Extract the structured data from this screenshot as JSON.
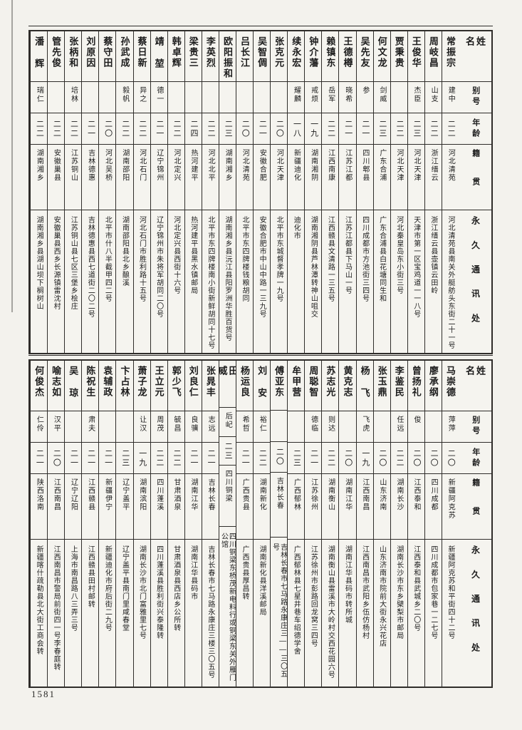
{
  "page": {
    "number": "1581"
  },
  "row_headers": {
    "name": "姓名",
    "alias": "别号",
    "age": "年龄",
    "native_place": "籍贯",
    "address": "永久通讯处"
  },
  "tables": [
    {
      "id": "top",
      "entries": [
        {
          "name": "常振宗",
          "alias": "建中",
          "age": "二二",
          "native_place": "河北清苑",
          "address": "河北清苑县南关外艇舫头东街二十一号"
        },
        {
          "name": "周岐昌",
          "alias": "山支",
          "age": "二二",
          "native_place": "浙江缙云",
          "address": "浙江缙云县壶镇云田岭"
        },
        {
          "name": "王俊华",
          "alias": "杰臣",
          "age": "二三",
          "native_place": "河北天津",
          "address": "天津市第一区宝鸡道一一八号"
        },
        {
          "name": "贾秉贵",
          "alias": "",
          "age": "二二",
          "native_place": "河北天津",
          "address": "河北秦皇岛东小街三号"
        },
        {
          "name": "何文龙",
          "alias": "剑威",
          "age": "二三",
          "native_place": "广东合浦",
          "address": "广东合浦县白花塘同生和"
        },
        {
          "name": "吴先友",
          "alias": "参",
          "age": "二一",
          "native_place": "四川郫县",
          "address": "四川成都市方池街三四号"
        },
        {
          "name": "王德樽",
          "alias": "晓希",
          "age": "二一",
          "native_place": "江苏江都",
          "address": "江苏江都县下马山一号"
        },
        {
          "name": "赖镇东",
          "alias": "岳军",
          "age": "二二",
          "native_place": "江西南康",
          "address": "江西赣县文清路一三五号"
        },
        {
          "name": "钟介藩",
          "alias": "戒烦",
          "age": "一九",
          "native_place": "湖南湘阴",
          "address": "湖南湘阴县芦林潭转神山咀交"
        },
        {
          "name": "续永宏",
          "alias": "耀麟",
          "age": "一八",
          "native_place": "新疆迪化",
          "address": "迪化市"
        },
        {
          "name": "张克元",
          "alias": "",
          "age": "二〇",
          "native_place": "河北天津",
          "address": "北平市东城督孝牌一九号"
        },
        {
          "name": "吴智倜",
          "alias": "",
          "age": "二一",
          "native_place": "安徽合肥",
          "address": "安徽合肥市中山中路一三九号"
        },
        {
          "name": "吕长江",
          "alias": "",
          "age": "二〇",
          "native_place": "河北清苑",
          "address": "北平市东四牌楼钱粮胡同"
        },
        {
          "name": "欧阳振和",
          "alias": "",
          "age": "二三",
          "native_place": "湖南湘乡",
          "address": "湖南湘乡县沅江县阳罗洲华胜百货号"
        },
        {
          "name": "李英烈",
          "alias": "",
          "age": "二二",
          "native_place": "河北北平",
          "address": "北平市东四牌楼南小街新鲜胡同十七号"
        },
        {
          "name": "梁贵三",
          "alias": "",
          "age": "二四",
          "native_place": "热河建平",
          "address": "热河建平县黑水镇邮局"
        },
        {
          "name": "韩卓辉",
          "alias": "",
          "age": "二二",
          "native_place": "河北定兴",
          "address": "河北定兴县西街十六号"
        },
        {
          "name": "靖堃",
          "alias": "德一",
          "age": "二一",
          "native_place": "辽宁锦州",
          "address": "辽宁锦州市朱将军胡同二〇号"
        },
        {
          "name": "蔡日新",
          "alias": "异之",
          "age": "二二",
          "native_place": "河北石门",
          "address": "河北石门市胜利路十五号"
        },
        {
          "name": "孙武成",
          "alias": "毅帆",
          "age": "二二",
          "native_place": "湖南邵阳",
          "address": "湖南邵阳县北乡酿溪"
        },
        {
          "name": "蔡守田",
          "alias": "",
          "age": "二〇",
          "native_place": "河北吴桥",
          "address": "北平市什八半截甲四二号"
        },
        {
          "name": "刘原因",
          "alias": "",
          "age": "二一",
          "native_place": "吉林德惠",
          "address": "吉林德惠县西七道街二〇二号"
        },
        {
          "name": "张柄和",
          "alias": "培林",
          "age": "二二",
          "native_place": "江苏铜山",
          "address": "江苏铜山县七区三堡乡桧庄"
        },
        {
          "name": "管先俊",
          "alias": "",
          "age": "二二",
          "native_place": "安徽巢县",
          "address": "安徽巢县西乡长源镇雷沈村"
        },
        {
          "name": "潘辉",
          "alias": "瑞仁",
          "age": "二二",
          "native_place": "湖南湘乡",
          "address": "湖南湘乡县湖山坝下榈树山"
        }
      ]
    },
    {
      "id": "bottom",
      "entries": [
        {
          "name": "马崇德",
          "alias": "萍萍",
          "age": "二〇",
          "native_place": "新疆阿克苏",
          "address": "新疆阿克苏和平街四十二号"
        },
        {
          "name": "廖承纲",
          "alias": "",
          "age": "二〇",
          "native_place": "四川成都",
          "address": "四川成都市包家巷一二七号"
        },
        {
          "name": "曾扬礼",
          "alias": "俊",
          "age": "二〇",
          "native_place": "江西泰和",
          "address": "江西泰和县武城乡二〇号"
        },
        {
          "name": "李鉴民",
          "alias": "任远",
          "age": "二二",
          "native_place": "湖南长沙",
          "address": "湖南长沙市东乡檗梨市邮局"
        },
        {
          "name": "张玉鼎",
          "alias": "",
          "age": "二〇",
          "native_place": "山东济南",
          "address": "山东济南市院前大街永兴花店"
        },
        {
          "name": "杨飞",
          "alias": "飞虎",
          "age": "一九",
          "native_place": "江西南昌",
          "address": "江西南昌市武阳乡伍仿杨村"
        },
        {
          "name": "黄克志",
          "alias": "",
          "age": "二〇",
          "native_place": "湖南江华",
          "address": "湖南江华县码市转所城"
        },
        {
          "name": "苏志光",
          "alias": "则达",
          "age": "二二",
          "native_place": "湖南衡山",
          "address": "湖南衡山县雷溪市大岭村交西花园六号"
        },
        {
          "name": "周聪智",
          "alias": "德临",
          "age": "二一",
          "native_place": "江苏徐州",
          "address": "江苏徐州市彭路回龙窝三四号"
        },
        {
          "name": "牟甲营",
          "alias": "",
          "age": "二三",
          "native_place": "广西郁林",
          "address": "广西郁林县七星井巷车绍德学舍"
        },
        {
          "name": "傅亚东",
          "alias": "",
          "age": "二〇",
          "native_place": "吉林长春",
          "address": "吉林长春市七马路永康庄三——三〇五号"
        },
        {
          "name": "刘安",
          "alias": "裕仁",
          "age": "二二",
          "native_place": "湖南新化",
          "address": "湖南新化县洋溪邮局"
        },
        {
          "name": "杨运良",
          "alias": "希哲",
          "age": "二一",
          "native_place": "广西贵县",
          "address": "广西贵县厚昌转"
        },
        {
          "name": "田威",
          "alias": "后屺",
          "age": "二三",
          "native_place": "四川铜梁",
          "address": "四川铜梁东桥茂新电料行或铜梁东关外雁门公馆"
        },
        {
          "name": "张晁丰",
          "alias": "志远",
          "age": "二一",
          "native_place": "吉林长春",
          "address": "吉林长春市七马路永康庄三楼三〇五号"
        },
        {
          "name": "刘良仁",
          "alias": "良骥",
          "age": "二一",
          "native_place": "湖南江华",
          "address": "湖南江华县码市"
        },
        {
          "name": "郭少飞",
          "alias": "毓昌",
          "age": "二二",
          "native_place": "甘肃酒泉",
          "address": "甘肃酒泉县西店乡公所转"
        },
        {
          "name": "王立元",
          "alias": "周茂",
          "age": "二二",
          "native_place": "四川蓬溪",
          "address": "四川蓬溪县胜利街兴泰隆转"
        },
        {
          "name": "萧子龙",
          "alias": "让汉",
          "age": "一九",
          "native_place": "湖南滨阳",
          "address": "湖南长沙市北门富雅里七号"
        },
        {
          "name": "卞占林",
          "alias": "",
          "age": "二三",
          "native_place": "辽宁盖平",
          "address": "辽宁盖平县南门里咸春堂"
        },
        {
          "name": "袁辅政",
          "alias": "",
          "age": "二一",
          "native_place": "新疆伊宁",
          "address": "新疆迪化市府后街二九号"
        },
        {
          "name": "陈祝生",
          "alias": "肃夫",
          "age": "二一",
          "native_place": "江西赣县",
          "address": "江西赣县田村邮转"
        },
        {
          "name": "吴琼",
          "alias": "",
          "age": "二一",
          "native_place": "辽宁辽阳",
          "address": "上海市南昌路八三弄三号"
        },
        {
          "name": "喻志如",
          "alias": "汉平",
          "age": "二〇",
          "native_place": "江西南昌",
          "address": "江西南昌市警局前街四一号李春庭转"
        },
        {
          "name": "何俊杰",
          "alias": "仁伶",
          "age": "二一",
          "native_place": "陕西洛南",
          "address": "新疆喀什疏勒县北大街工商会转"
        }
      ]
    }
  ]
}
